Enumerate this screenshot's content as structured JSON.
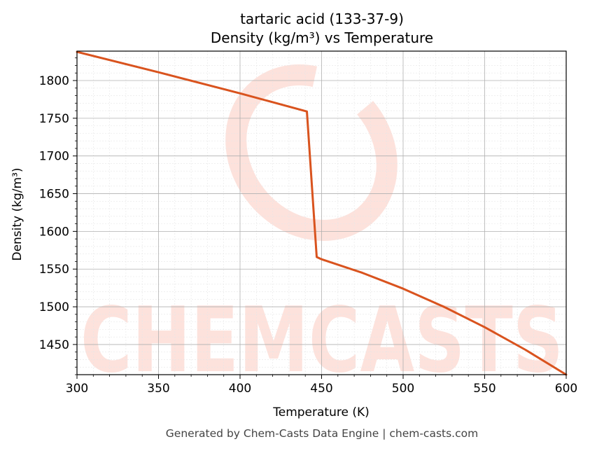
{
  "chart_data": {
    "type": "line",
    "title": "tartaric acid (133-37-9)",
    "subtitle": "Density (kg/m³) vs Temperature",
    "xlabel": "Temperature (K)",
    "ylabel": "Density (kg/m³)",
    "xlim": [
      300,
      600
    ],
    "ylim": [
      1410,
      1839
    ],
    "xticks": [
      300,
      350,
      400,
      450,
      500,
      550,
      600
    ],
    "yticks": [
      1450,
      1500,
      1550,
      1600,
      1650,
      1700,
      1750,
      1800
    ],
    "grid": true,
    "series": [
      {
        "color": "#d9531e",
        "x": [
          300,
          350,
          400,
          441,
          447,
          450,
          475,
          500,
          525,
          550,
          575,
          600
        ],
        "y": [
          1838,
          1811,
          1783,
          1759,
          1566,
          1563,
          1545,
          1524,
          1500,
          1473,
          1443,
          1410
        ]
      }
    ]
  },
  "watermark": {
    "text": "CHEMCASTS",
    "color": "#fde2dc"
  },
  "footer": "Generated by Chem-Casts Data Engine | chem-casts.com"
}
